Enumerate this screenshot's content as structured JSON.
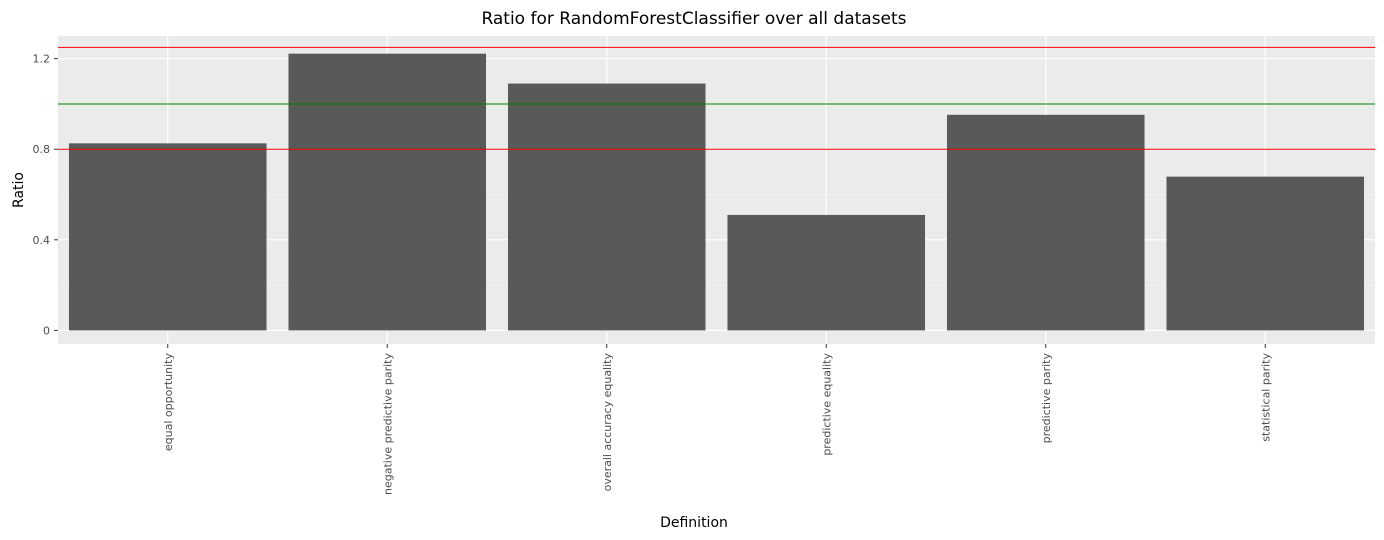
{
  "chart_data": {
    "type": "bar",
    "title": "Ratio for RandomForestClassifier over all datasets",
    "xlabel": "Definition",
    "ylabel": "Ratio",
    "categories": [
      "equal opportunity",
      "negative predictive parity",
      "overall accuracy equality",
      "predictive equality",
      "predictive parity",
      "statistical parity"
    ],
    "values": [
      0.826,
      1.222,
      1.09,
      0.51,
      0.952,
      0.679
    ],
    "ylim": [
      -0.06,
      1.3
    ],
    "yticks": [
      0,
      0.4,
      0.8,
      1.2
    ],
    "ytick_labels": [
      "0",
      "0.4",
      "0.8",
      "1.2"
    ],
    "grid": true,
    "reference_lines": [
      {
        "value": 0.8,
        "color": "#ff0000"
      },
      {
        "value": 1.0,
        "color": "#008000"
      },
      {
        "value": 1.25,
        "color": "#ff0000"
      }
    ],
    "colors": {
      "bar": "#595959",
      "panel": "#ebebeb",
      "grid_major": "#ffffff",
      "grid_minor": "#f5f5f5"
    }
  }
}
